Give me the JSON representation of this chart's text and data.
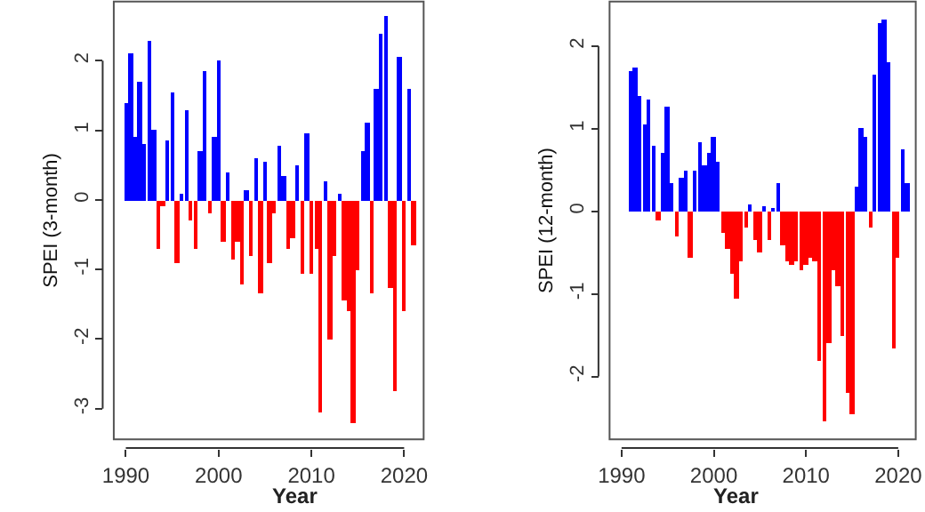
{
  "chart_data": [
    {
      "type": "bar",
      "xlabel": "Year",
      "ylabel": "SPEI (3-month)",
      "xlim": [
        1988.7,
        2022.1
      ],
      "ylim": [
        -3.44,
        2.85
      ],
      "xticks": [
        1990,
        2000,
        2010,
        2020
      ],
      "yticks": [
        -3,
        -2,
        -1,
        0,
        1,
        2
      ],
      "series": [
        {
          "color": "#0000ff",
          "x": [
            1990,
            1990.5,
            1991,
            1991.5,
            1992,
            1992.5,
            1993,
            1994.5,
            1995,
            1996,
            1996.5,
            1998,
            1998.5,
            1999.5,
            2000,
            2001,
            2003,
            2004,
            2005,
            2006.5,
            2007,
            2008.5,
            2009.5,
            2011.5,
            2013,
            2015.5,
            2016,
            2017,
            2017.5,
            2018,
            2019.5,
            2020.5
          ],
          "values": [
            1.4,
            2.1,
            0.9,
            1.7,
            0.8,
            2.3,
            1.0,
            0.85,
            1.55,
            0.1,
            1.3,
            0.7,
            1.85,
            0.9,
            2.0,
            0.4,
            0.15,
            0.6,
            0.55,
            0.77,
            0.35,
            0.5,
            0.97,
            0.27,
            0.1,
            0.7,
            1.12,
            1.6,
            2.4,
            2.65,
            2.05,
            1.6
          ]
        },
        {
          "color": "#ff0000",
          "x": [
            1993.5,
            1994,
            1995.5,
            1997,
            1997.5,
            1999,
            2000.5,
            2001.5,
            2002,
            2002.5,
            2003.5,
            2004.5,
            2005.5,
            2006,
            2007.5,
            2008,
            2009,
            2010,
            2010.5,
            2011,
            2012,
            2012.5,
            2013.5,
            2014,
            2014.5,
            2015,
            2016.5,
            2018.5,
            2019,
            2020,
            2021
          ],
          "values": [
            -0.7,
            -0.1,
            -0.9,
            -0.3,
            -0.7,
            -0.2,
            -0.6,
            -0.85,
            -0.6,
            -1.2,
            -0.8,
            -1.35,
            -0.9,
            -0.2,
            -0.7,
            -0.55,
            -1.05,
            -1.05,
            -0.7,
            -3.05,
            -2.0,
            -0.8,
            -1.45,
            -1.6,
            -3.2,
            -1.0,
            -1.35,
            -1.25,
            -2.75,
            -1.6,
            -0.65
          ]
        }
      ]
    },
    {
      "type": "bar",
      "xlabel": "Year",
      "ylabel": "SPEI (12-month)",
      "xlim": [
        1988.7,
        2021.9
      ],
      "ylim": [
        -2.76,
        2.54
      ],
      "xticks": [
        1990,
        2000,
        2010,
        2020
      ],
      "yticks": [
        -2,
        -1,
        0,
        1,
        2
      ],
      "series": [
        {
          "color": "#0000ff",
          "x": [
            1991,
            1991.5,
            1992,
            1992.5,
            1993,
            1993.5,
            1994.5,
            1995,
            1995.5,
            1996.5,
            1997,
            1998,
            1998.5,
            1999,
            1999.5,
            2000,
            2000.5,
            2004,
            2005.5,
            2006.5,
            2007,
            2015.5,
            2016,
            2016.5,
            2017.5,
            2018,
            2018.5,
            2019,
            2020.5,
            2021
          ],
          "values": [
            1.7,
            1.74,
            1.4,
            1.05,
            1.35,
            0.8,
            0.7,
            1.27,
            0.35,
            0.4,
            0.5,
            0.5,
            0.85,
            0.55,
            0.7,
            0.9,
            0.6,
            0.08,
            0.07,
            0.05,
            0.35,
            0.3,
            1.02,
            0.9,
            1.65,
            2.28,
            2.33,
            1.8,
            0.75,
            0.35
          ]
        },
        {
          "color": "#ff0000",
          "x": [
            1994,
            1996,
            1997.5,
            2001,
            2001.5,
            2002,
            2002.5,
            2003,
            2003.5,
            2004.5,
            2005,
            2006,
            2007.5,
            2008,
            2008.5,
            2009,
            2009.5,
            2010,
            2010.5,
            2011,
            2011.5,
            2012,
            2012.5,
            2013,
            2013.5,
            2014,
            2014.5,
            2015,
            2017,
            2019.5,
            2020
          ],
          "values": [
            -0.1,
            -0.3,
            -0.55,
            -0.25,
            -0.45,
            -0.75,
            -1.05,
            -0.6,
            -0.2,
            -0.35,
            -0.5,
            -0.35,
            -0.4,
            -0.6,
            -0.65,
            -0.6,
            -0.7,
            -0.65,
            -0.55,
            -0.6,
            -1.8,
            -2.55,
            -1.6,
            -0.7,
            -0.9,
            -1.5,
            -2.2,
            -2.45,
            -0.2,
            -1.65,
            -0.55
          ]
        }
      ]
    }
  ]
}
